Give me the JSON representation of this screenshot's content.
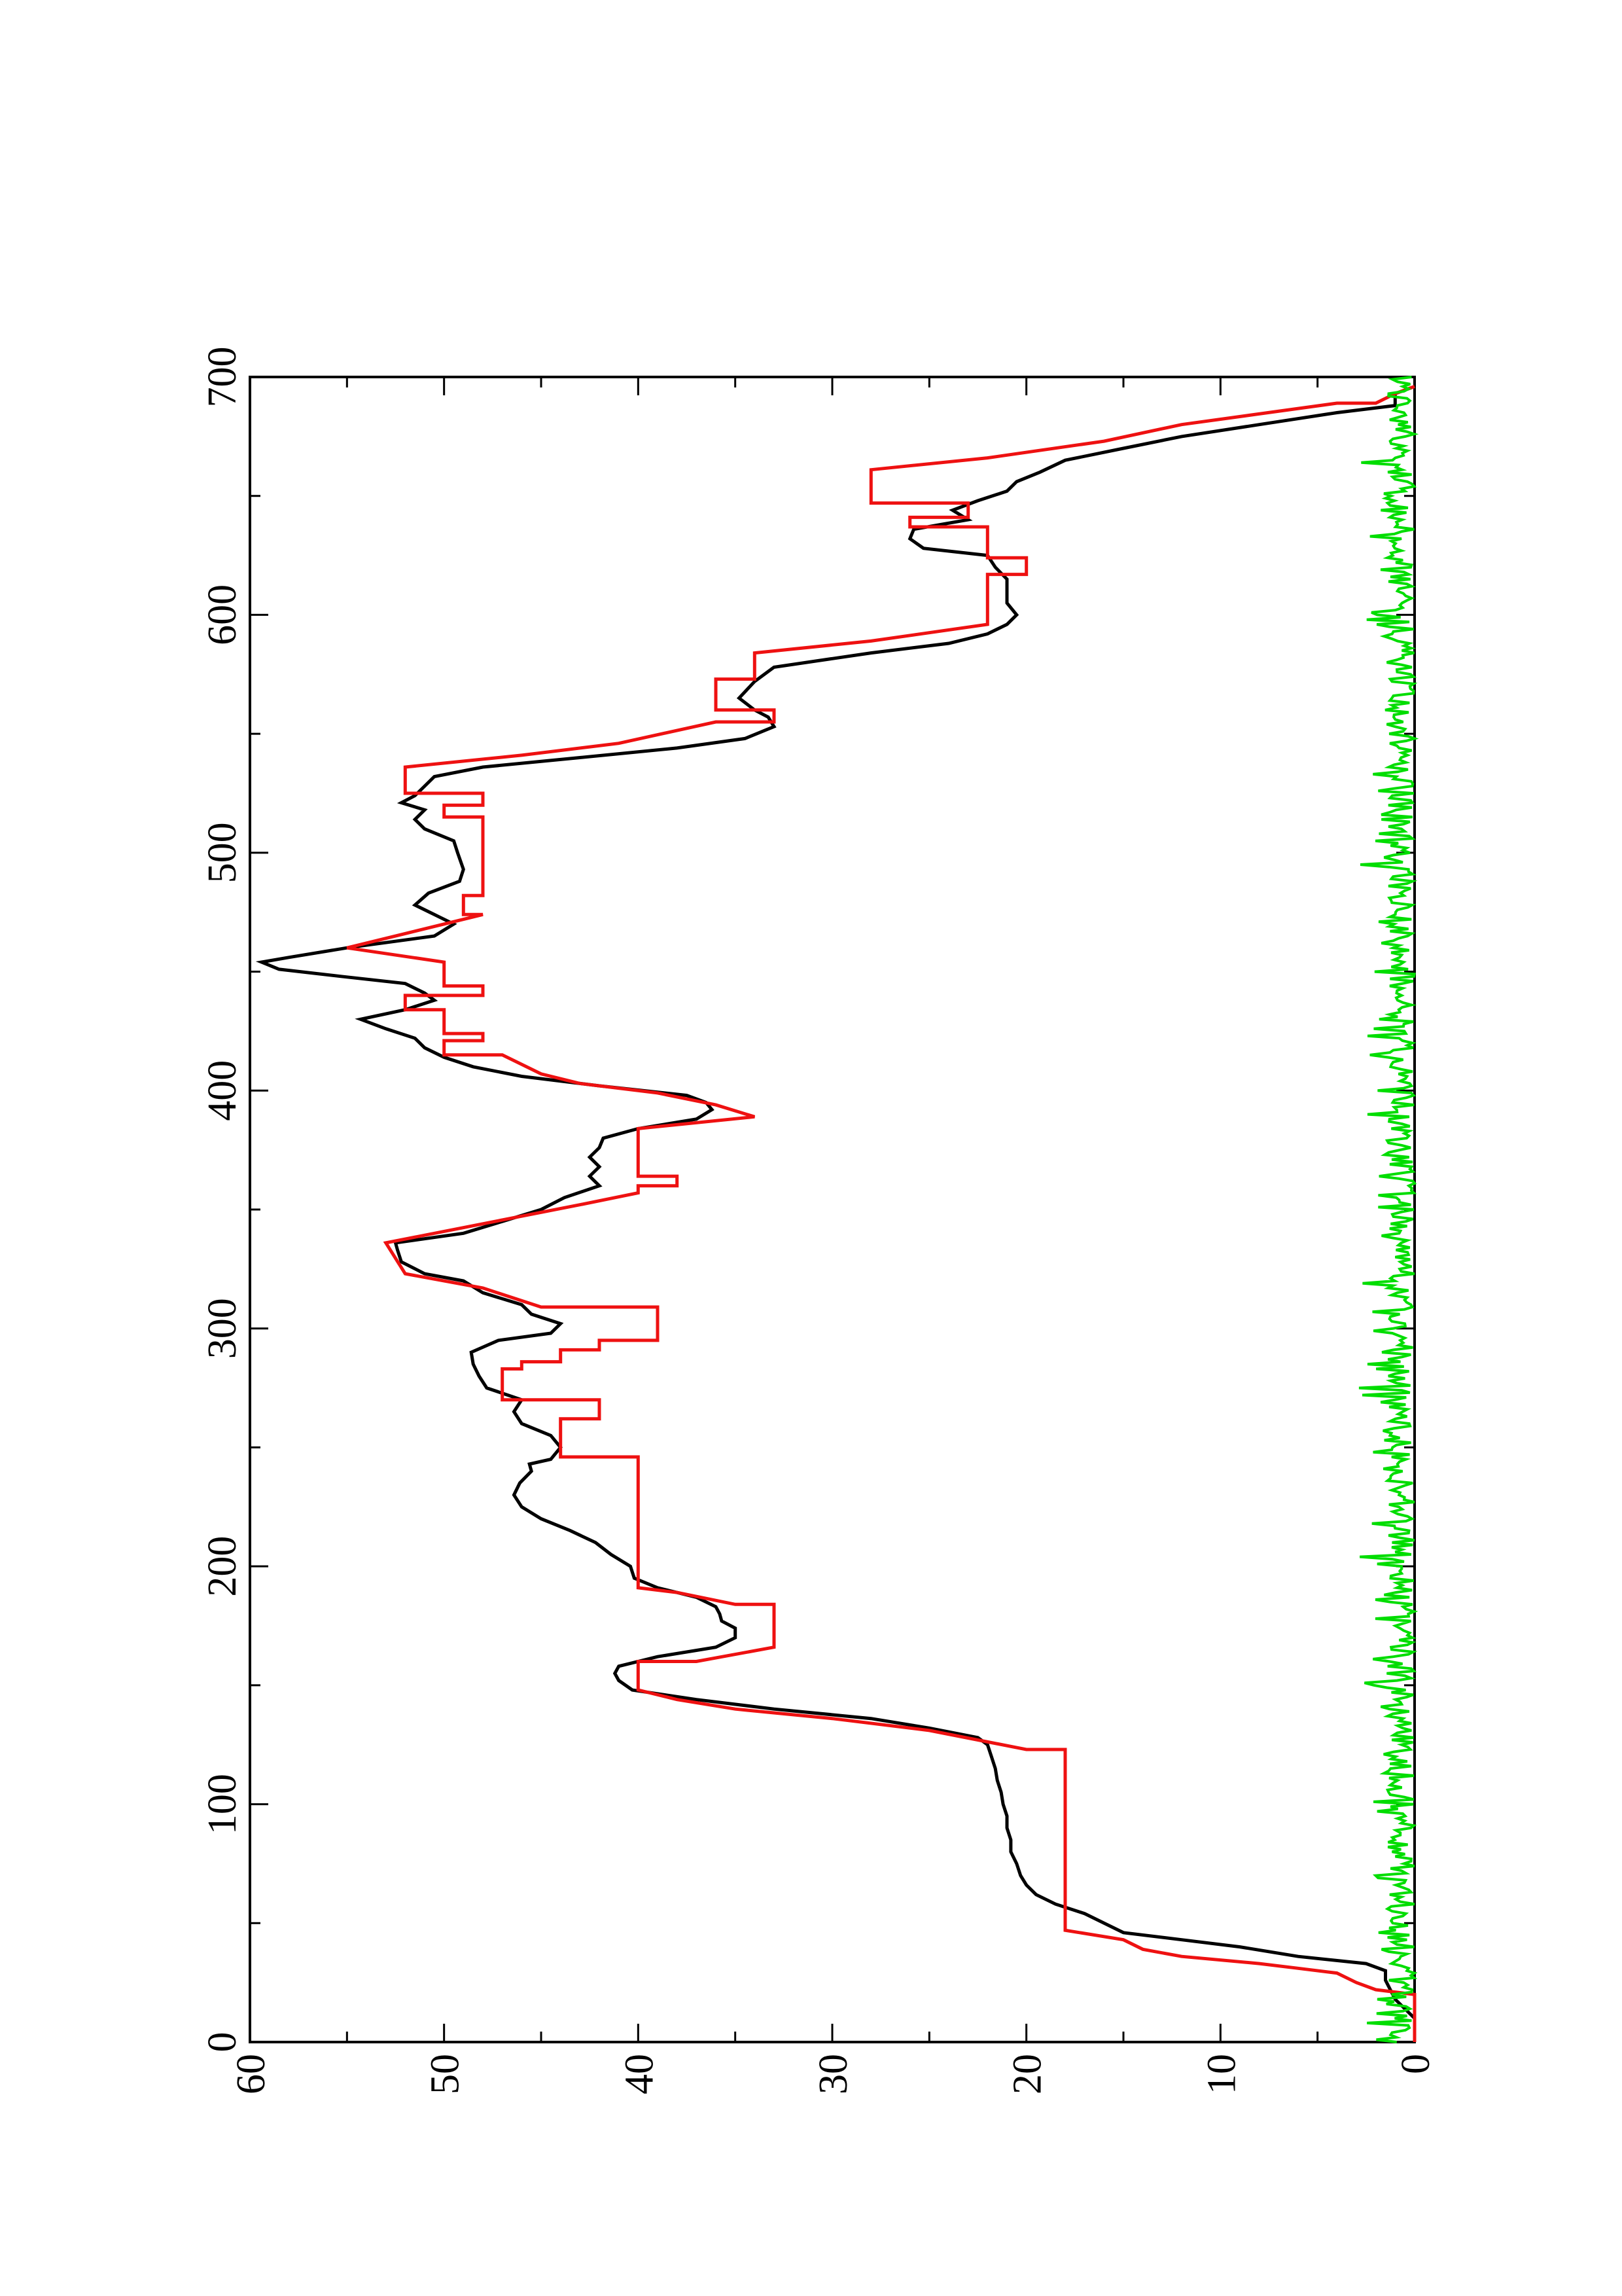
{
  "chart_data": {
    "type": "line",
    "title": "",
    "xlabel": "",
    "ylabel": "",
    "orientation": "rotated 90 degrees counter-clockwise",
    "xlim": [
      0,
      700
    ],
    "ylim": [
      0,
      60
    ],
    "x_ticks": [
      0,
      100,
      200,
      300,
      400,
      500,
      600,
      700
    ],
    "x_ticks_labels": [
      "0",
      "100",
      "200",
      "300",
      "400",
      "500",
      "600",
      "700"
    ],
    "y_ticks": [
      0,
      10,
      20,
      30,
      40,
      50,
      60
    ],
    "y_ticks_labels": [
      "0",
      "10",
      "20",
      "30",
      "40",
      "50",
      "60"
    ],
    "grid": false,
    "legend": "none",
    "series": [
      {
        "color": "#000000",
        "style": "line",
        "points": [
          [
            0,
            0
          ],
          [
            10,
            0
          ],
          [
            18,
            1
          ],
          [
            26,
            1.5
          ],
          [
            30,
            1.5
          ],
          [
            33,
            2.5
          ],
          [
            36,
            6
          ],
          [
            40,
            9
          ],
          [
            43,
            12
          ],
          [
            46,
            15
          ],
          [
            50,
            16
          ],
          [
            54,
            17
          ],
          [
            58,
            18.5
          ],
          [
            62,
            19.5
          ],
          [
            66,
            20
          ],
          [
            70,
            20.3
          ],
          [
            75,
            20.5
          ],
          [
            80,
            20.8
          ],
          [
            85,
            20.8
          ],
          [
            90,
            21
          ],
          [
            95,
            21
          ],
          [
            100,
            21.2
          ],
          [
            105,
            21.3
          ],
          [
            110,
            21.5
          ],
          [
            115,
            21.6
          ],
          [
            120,
            21.8
          ],
          [
            125,
            22
          ],
          [
            128,
            22.5
          ],
          [
            132,
            25
          ],
          [
            136,
            28
          ],
          [
            140,
            33
          ],
          [
            144,
            37
          ],
          [
            148,
            40.3
          ],
          [
            152,
            41
          ],
          [
            155,
            41.2
          ],
          [
            158,
            41
          ],
          [
            162,
            39
          ],
          [
            166,
            36
          ],
          [
            170,
            35
          ],
          [
            174,
            35
          ],
          [
            177,
            35.7
          ],
          [
            180,
            35.8
          ],
          [
            183,
            36
          ],
          [
            187,
            37
          ],
          [
            191,
            39
          ],
          [
            195,
            40.2
          ],
          [
            200,
            40.4
          ],
          [
            205,
            41.4
          ],
          [
            210,
            42.2
          ],
          [
            215,
            43.5
          ],
          [
            220,
            45
          ],
          [
            225,
            46
          ],
          [
            230,
            46.4
          ],
          [
            235,
            46.1
          ],
          [
            240,
            45.5
          ],
          [
            243,
            45.6
          ],
          [
            245,
            44.5
          ],
          [
            250,
            44
          ],
          [
            255,
            44.5
          ],
          [
            260,
            46
          ],
          [
            265,
            46.4
          ],
          [
            270,
            46
          ],
          [
            275,
            47.8
          ],
          [
            280,
            48.2
          ],
          [
            285,
            48.5
          ],
          [
            290,
            48.6
          ],
          [
            295,
            47.2
          ],
          [
            298,
            44.5
          ],
          [
            302,
            44
          ],
          [
            306,
            45.5
          ],
          [
            310,
            46
          ],
          [
            315,
            48
          ],
          [
            320,
            49
          ],
          [
            323,
            51
          ],
          [
            328,
            52.2
          ],
          [
            333,
            52.4
          ],
          [
            336,
            52.5
          ],
          [
            340,
            49
          ],
          [
            345,
            47
          ],
          [
            350,
            45
          ],
          [
            355,
            43.8
          ],
          [
            360,
            42
          ],
          [
            364,
            42.5
          ],
          [
            368,
            42
          ],
          [
            372,
            42.5
          ],
          [
            376,
            42
          ],
          [
            380,
            41.8
          ],
          [
            384,
            40
          ],
          [
            388,
            37
          ],
          [
            392,
            36.2
          ],
          [
            395,
            36.5
          ],
          [
            398,
            37.5
          ],
          [
            402,
            42
          ],
          [
            406,
            46
          ],
          [
            410,
            48.5
          ],
          [
            414,
            50
          ],
          [
            418,
            51
          ],
          [
            422,
            51.5
          ],
          [
            426,
            53
          ],
          [
            430,
            54.3
          ],
          [
            434,
            52
          ],
          [
            438,
            50.5
          ],
          [
            441,
            51
          ],
          [
            445,
            52
          ],
          [
            448,
            55.3
          ],
          [
            451,
            58.5
          ],
          [
            454,
            59.4
          ],
          [
            456,
            58
          ],
          [
            460,
            55
          ],
          [
            465,
            50.5
          ],
          [
            470,
            49.5
          ],
          [
            474,
            50.5
          ],
          [
            478,
            51.5
          ],
          [
            483,
            50.8
          ],
          [
            488,
            49.2
          ],
          [
            493,
            49
          ],
          [
            500,
            49.3
          ],
          [
            505,
            49.5
          ],
          [
            510,
            51
          ],
          [
            514,
            51.5
          ],
          [
            518,
            51
          ],
          [
            521,
            52.2
          ],
          [
            524,
            51.5
          ],
          [
            528,
            51
          ],
          [
            532,
            50.5
          ],
          [
            536,
            48
          ],
          [
            540,
            43
          ],
          [
            544,
            38
          ],
          [
            548,
            34.5
          ],
          [
            553,
            33
          ],
          [
            557,
            33.3
          ],
          [
            560,
            34
          ],
          [
            565,
            34.8
          ],
          [
            572,
            34
          ],
          [
            578,
            33
          ],
          [
            584,
            28
          ],
          [
            588,
            24
          ],
          [
            592,
            22
          ],
          [
            596,
            21
          ],
          [
            600,
            20.5
          ],
          [
            605,
            21
          ],
          [
            615,
            21
          ],
          [
            620,
            21.6
          ],
          [
            625,
            22
          ],
          [
            628,
            25.3
          ],
          [
            632,
            26
          ],
          [
            636,
            25.8
          ],
          [
            640,
            23
          ],
          [
            644,
            23.8
          ],
          [
            648,
            22.5
          ],
          [
            652,
            21
          ],
          [
            656,
            20.5
          ],
          [
            660,
            19.3
          ],
          [
            665,
            18
          ],
          [
            670,
            15
          ],
          [
            675,
            12
          ],
          [
            680,
            8
          ],
          [
            685,
            4
          ],
          [
            688,
            1
          ],
          [
            693,
            1
          ],
          [
            696,
            0
          ]
        ]
      },
      {
        "color": "#ee1111",
        "style": "step",
        "points": [
          [
            0,
            0
          ],
          [
            20,
            0
          ],
          [
            22,
            2
          ],
          [
            25,
            3
          ],
          [
            29,
            4
          ],
          [
            31,
            6
          ],
          [
            33,
            8
          ],
          [
            36,
            12
          ],
          [
            39,
            14
          ],
          [
            43,
            15
          ],
          [
            47,
            18
          ],
          [
            123,
            18
          ],
          [
            123,
            20
          ],
          [
            131,
            25
          ],
          [
            136,
            30
          ],
          [
            140,
            35
          ],
          [
            144,
            38
          ],
          [
            148,
            40
          ],
          [
            160,
            40
          ],
          [
            160,
            37
          ],
          [
            166,
            33
          ],
          [
            184,
            33
          ],
          [
            184,
            35
          ],
          [
            189,
            38
          ],
          [
            191,
            40
          ],
          [
            246,
            40
          ],
          [
            246,
            44
          ],
          [
            262,
            44
          ],
          [
            262,
            42
          ],
          [
            270,
            42
          ],
          [
            270,
            47
          ],
          [
            283,
            47
          ],
          [
            283,
            46
          ],
          [
            286,
            46
          ],
          [
            286,
            44
          ],
          [
            291,
            44
          ],
          [
            291,
            42
          ],
          [
            295,
            42
          ],
          [
            295,
            39
          ],
          [
            309,
            39
          ],
          [
            309,
            45
          ],
          [
            317,
            48
          ],
          [
            323,
            52
          ],
          [
            336,
            53
          ],
          [
            344,
            48
          ],
          [
            352,
            43
          ],
          [
            357,
            40
          ],
          [
            360,
            40
          ],
          [
            360,
            38
          ],
          [
            364,
            38
          ],
          [
            364,
            40
          ],
          [
            384,
            40
          ],
          [
            389,
            34
          ],
          [
            394,
            36
          ],
          [
            399,
            39
          ],
          [
            403,
            43
          ],
          [
            407,
            45
          ],
          [
            415,
            47
          ],
          [
            415,
            50
          ],
          [
            421,
            50
          ],
          [
            421,
            48
          ],
          [
            424,
            48
          ],
          [
            424,
            50
          ],
          [
            434,
            50
          ],
          [
            434,
            52
          ],
          [
            440,
            52
          ],
          [
            440,
            48
          ],
          [
            444,
            48
          ],
          [
            444,
            50
          ],
          [
            454,
            50
          ],
          [
            460,
            55
          ],
          [
            466,
            52
          ],
          [
            474,
            48
          ],
          [
            474,
            49
          ],
          [
            482,
            49
          ],
          [
            482,
            48
          ],
          [
            515,
            48
          ],
          [
            515,
            50
          ],
          [
            520,
            50
          ],
          [
            520,
            48
          ],
          [
            525,
            48
          ],
          [
            525,
            52
          ],
          [
            536,
            52
          ],
          [
            541,
            46
          ],
          [
            546,
            41
          ],
          [
            555,
            36
          ],
          [
            555,
            33
          ],
          [
            560,
            33
          ],
          [
            560,
            36
          ],
          [
            573,
            36
          ],
          [
            573,
            34
          ],
          [
            584,
            34
          ],
          [
            589,
            28
          ],
          [
            596,
            22
          ],
          [
            617,
            22
          ],
          [
            617,
            20
          ],
          [
            624,
            20
          ],
          [
            624,
            22
          ],
          [
            637,
            22
          ],
          [
            637,
            26
          ],
          [
            641,
            26
          ],
          [
            641,
            23
          ],
          [
            647,
            23
          ],
          [
            647,
            28
          ],
          [
            661,
            28
          ],
          [
            666,
            22
          ],
          [
            673,
            16
          ],
          [
            680,
            12
          ],
          [
            689,
            4
          ],
          [
            689,
            2
          ],
          [
            693,
            1
          ],
          [
            696,
            0
          ]
        ]
      },
      {
        "color": "#00dd00",
        "style": "noise",
        "approx_range": [
          0,
          3
        ],
        "x_range": [
          0,
          700
        ]
      }
    ]
  }
}
